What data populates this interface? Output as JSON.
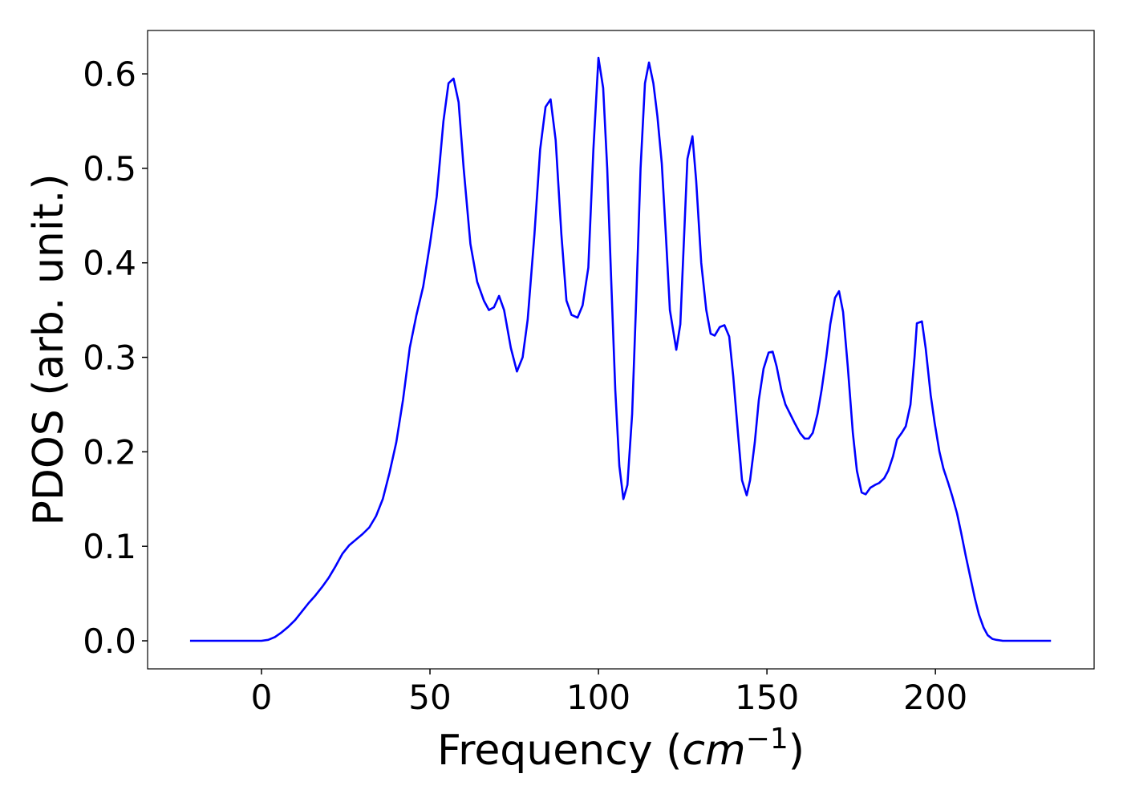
{
  "chart_data": {
    "type": "line",
    "xlabel": [
      "Frequency (",
      "cm",
      "−1",
      ")"
    ],
    "ylabel": "PDOS (arb. unit.)",
    "color": "#0000ff",
    "x": [
      -21.2,
      -10,
      0,
      2,
      4,
      6,
      8,
      10,
      12,
      14,
      16,
      18,
      20,
      22,
      24,
      26,
      28,
      30,
      32,
      34,
      36,
      38,
      40,
      42,
      44,
      46,
      48,
      50,
      52,
      54,
      55.5,
      57,
      58.5,
      60,
      62,
      64,
      66,
      67.5,
      69,
      70.5,
      72,
      74,
      75.8,
      77.5,
      79,
      81,
      82.7,
      84.3,
      85.8,
      87.3,
      89,
      90.5,
      92,
      93.8,
      95.3,
      97,
      98.5,
      100,
      101.4,
      102.6,
      103.8,
      105,
      106.2,
      107.4,
      108.6,
      110,
      111.3,
      112.5,
      113.8,
      115,
      116.3,
      117.5,
      118.8,
      120,
      121.2,
      123.1,
      124.3,
      126.4,
      127.9,
      129,
      130.5,
      132,
      133.3,
      134.5,
      136,
      137.4,
      138.8,
      140,
      141.4,
      142.6,
      144,
      145,
      146.4,
      147.6,
      149,
      150.5,
      151.7,
      152.9,
      154.3,
      155.5,
      156.9,
      158.3,
      159.8,
      161.2,
      162.4,
      163.6,
      165,
      166.2,
      167.6,
      168.8,
      170.2,
      171.4,
      172.6,
      174,
      175.5,
      176.7,
      178.1,
      179.3,
      180.7,
      182.1,
      183.3,
      184.8,
      186,
      187.4,
      188.6,
      190,
      191.2,
      192.6,
      193.8,
      194.5,
      196,
      197.1,
      198.6,
      199.8,
      201.2,
      202.4,
      203.8,
      205,
      206.4,
      207.6,
      209,
      210.5,
      211.7,
      212.9,
      214.3,
      215.5,
      216.9,
      218.1,
      220,
      234.3
    ],
    "values": [
      0,
      0,
      0,
      0.001,
      0.004,
      0.009,
      0.015,
      0.022,
      0.031,
      0.04,
      0.048,
      0.057,
      0.067,
      0.079,
      0.092,
      0.101,
      0.107,
      0.113,
      0.12,
      0.132,
      0.15,
      0.178,
      0.21,
      0.255,
      0.31,
      0.345,
      0.375,
      0.42,
      0.47,
      0.55,
      0.59,
      0.595,
      0.57,
      0.5,
      0.42,
      0.38,
      0.36,
      0.35,
      0.353,
      0.365,
      0.35,
      0.31,
      0.285,
      0.3,
      0.34,
      0.43,
      0.52,
      0.565,
      0.573,
      0.53,
      0.43,
      0.36,
      0.345,
      0.342,
      0.355,
      0.395,
      0.52,
      0.617,
      0.585,
      0.5,
      0.38,
      0.265,
      0.185,
      0.15,
      0.165,
      0.24,
      0.37,
      0.5,
      0.59,
      0.612,
      0.59,
      0.555,
      0.505,
      0.43,
      0.35,
      0.308,
      0.335,
      0.51,
      0.534,
      0.487,
      0.4,
      0.35,
      0.325,
      0.323,
      0.332,
      0.334,
      0.322,
      0.28,
      0.22,
      0.17,
      0.154,
      0.17,
      0.21,
      0.255,
      0.288,
      0.305,
      0.306,
      0.29,
      0.265,
      0.25,
      0.24,
      0.23,
      0.22,
      0.214,
      0.214,
      0.22,
      0.24,
      0.265,
      0.3,
      0.335,
      0.363,
      0.37,
      0.348,
      0.29,
      0.22,
      0.18,
      0.157,
      0.155,
      0.162,
      0.165,
      0.167,
      0.172,
      0.18,
      0.195,
      0.213,
      0.22,
      0.227,
      0.25,
      0.3,
      0.336,
      0.338,
      0.31,
      0.26,
      0.23,
      0.2,
      0.182,
      0.167,
      0.153,
      0.135,
      0.115,
      0.09,
      0.065,
      0.045,
      0.028,
      0.014,
      0.006,
      0.002,
      0.001,
      0,
      0
    ],
    "xlim": [
      -33.8,
      247.1
    ],
    "ylim": [
      -0.0297,
      0.6459
    ],
    "xticks": [
      0,
      50,
      100,
      150,
      200
    ],
    "yticks": [
      {
        "value": 0,
        "label": "0.0"
      },
      0.1,
      0.2,
      0.3,
      0.4,
      0.5,
      0.6
    ],
    "grid": false
  }
}
